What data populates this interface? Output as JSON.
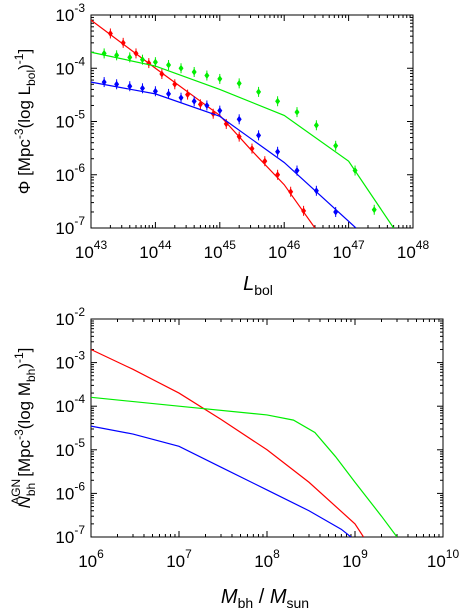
{
  "chart_data": [
    {
      "type": "line",
      "xscale": "log",
      "yscale": "log",
      "xlim": [
        1e+43,
        1e+48
      ],
      "ylim": [
        1e-07,
        0.001
      ],
      "x_ticks": [
        {
          "base": "10",
          "exp": "43"
        },
        {
          "base": "10",
          "exp": "44"
        },
        {
          "base": "10",
          "exp": "45"
        },
        {
          "base": "10",
          "exp": "46"
        },
        {
          "base": "10",
          "exp": "47"
        },
        {
          "base": "10",
          "exp": "48"
        }
      ],
      "y_ticks": [
        {
          "base": "10",
          "exp": "-7"
        },
        {
          "base": "10",
          "exp": "-6"
        },
        {
          "base": "10",
          "exp": "-5"
        },
        {
          "base": "10",
          "exp": "-4"
        },
        {
          "base": "10",
          "exp": "-3"
        }
      ],
      "xlabel": {
        "main": "L",
        "sub": "bol"
      },
      "ylabel": {
        "pre": "Φ [Mpc",
        "sup": "-3",
        "mid": "(log  L",
        "sub": "bol",
        "post": ")",
        "sup2": "-1",
        "end": "]"
      },
      "series": [
        {
          "color": "#ff0000",
          "line_x": [
            1e+43,
            1e+44,
            1e+45,
            3e+45,
            1e+46,
            3e+46
          ],
          "line_y": [
            0.0008,
            0.0001,
            1.3e-05,
            3e-06,
            6.5e-07,
            1e-07
          ],
          "points_x": [
            2e+43,
            3.16e+43,
            5e+43,
            7.9e+43,
            1.26e+44,
            2e+44,
            3.16e+44,
            5e+44,
            7.9e+44,
            1.26e+45,
            2e+45,
            3.16e+45,
            5e+45,
            7.9e+45,
            1.26e+46,
            2e+46
          ],
          "points_y": [
            0.00045,
            0.0003,
            0.00019,
            0.000125,
            7.8e-05,
            5e-05,
            3.2e-05,
            2.1e-05,
            1.4e-05,
            9e-06,
            5.2e-06,
            3.1e-06,
            1.8e-06,
            1e-06,
            4.8e-07,
            2.1e-07
          ]
        },
        {
          "color": "#00ee00",
          "line_x": [
            1e+43,
            1e+44,
            1e+45,
            1e+46,
            1e+47,
            5e+47
          ],
          "line_y": [
            0.0002,
            0.00011,
            4e-05,
            1.3e-05,
            1.8e-06,
            1e-07
          ],
          "points_x": [
            1.6e+43,
            2.5e+43,
            4e+43,
            6.3e+43,
            1e+44,
            1.6e+44,
            2.5e+44,
            4e+44,
            6.3e+44,
            1e+45,
            2e+45,
            4e+45,
            7.9e+45,
            1.58e+46,
            3.16e+46,
            6.3e+46,
            1.26e+47,
            2.5e+47
          ],
          "points_y": [
            0.00019,
            0.000175,
            0.00016,
            0.000145,
            0.00013,
            0.000115,
            0.0001,
            8.5e-05,
            7.3e-05,
            6.3e-05,
            5.2e-05,
            3.6e-05,
            2.4e-05,
            1.5e-05,
            8.5e-06,
            3.5e-06,
            1.2e-06,
            2.2e-07
          ]
        },
        {
          "color": "#0000ff",
          "line_x": [
            1e+43,
            1e+44,
            1e+45,
            1e+46,
            1.3e+47
          ],
          "line_y": [
            5.5e-05,
            3.3e-05,
            1.25e-05,
            1.7e-06,
            1e-07
          ],
          "points_x": [
            1.6e+43,
            2.5e+43,
            4e+43,
            6.3e+43,
            1e+44,
            1.6e+44,
            2.5e+44,
            4e+44,
            6.3e+44,
            1e+45,
            2e+45,
            4e+45,
            7.9e+45,
            1.58e+46,
            3.16e+46,
            6.3e+46
          ],
          "points_y": [
            5.5e-05,
            5e-05,
            4.6e-05,
            4.2e-05,
            3.7e-05,
            3.3e-05,
            2.8e-05,
            2.4e-05,
            2e-05,
            1.6e-05,
            1.1e-05,
            5.5e-06,
            2.7e-06,
            1.2e-06,
            5e-07,
            2e-07
          ]
        }
      ]
    },
    {
      "type": "line",
      "xscale": "log",
      "yscale": "log",
      "xlim": [
        1000000.0,
        10000000000.0
      ],
      "ylim": [
        1e-07,
        0.01
      ],
      "x_ticks": [
        {
          "base": "10",
          "exp": "6"
        },
        {
          "base": "10",
          "exp": "7"
        },
        {
          "base": "10",
          "exp": "8"
        },
        {
          "base": "10",
          "exp": "9"
        },
        {
          "base": "10",
          "exp": "10"
        }
      ],
      "y_ticks": [
        {
          "base": "10",
          "exp": "-7"
        },
        {
          "base": "10",
          "exp": "-6"
        },
        {
          "base": "10",
          "exp": "-5"
        },
        {
          "base": "10",
          "exp": "-4"
        },
        {
          "base": "10",
          "exp": "-3"
        },
        {
          "base": "10",
          "exp": "-2"
        }
      ],
      "xlabel": {
        "m": "M",
        "msub": "bh",
        "slash": " / M",
        "ssub": "sun"
      },
      "ylabel": {
        "n": "N",
        "nsup": "AGN",
        "nsub": "bh",
        "rest": "[Mpc",
        "sup": "-3",
        "mid": "(log  M",
        "sub": "bh",
        "post": ")",
        "sup2": "-1",
        "end": "]"
      },
      "series": [
        {
          "color": "#ff0000",
          "line_x": [
            1000000.0,
            3000000.0,
            10000000.0,
            30000000.0,
            100000000.0,
            300000000.0,
            1000000000.0,
            1250000000.0
          ],
          "line_y": [
            0.002,
            0.0007,
            0.0002,
            5e-05,
            1e-05,
            1.8e-06,
            2e-07,
            1e-07
          ]
        },
        {
          "color": "#00ee00",
          "line_x": [
            1000000.0,
            10000000.0,
            100000000.0,
            200000000.0,
            350000000.0,
            600000000.0,
            1000000000.0,
            2000000000.0,
            3000000000.0
          ],
          "line_y": [
            0.00016,
            0.0001,
            6.3e-05,
            4.8e-05,
            2.5e-05,
            7e-06,
            1.8e-06,
            3e-07,
            1e-07
          ]
        },
        {
          "color": "#0000ff",
          "line_x": [
            1000000.0,
            3000000.0,
            10000000.0,
            30000000.0,
            100000000.0,
            300000000.0,
            700000000.0,
            900000000.0
          ],
          "line_y": [
            3.5e-05,
            2.3e-05,
            1.2e-05,
            4e-06,
            1.2e-06,
            4e-07,
            1.5e-07,
            1e-07
          ]
        }
      ]
    }
  ]
}
